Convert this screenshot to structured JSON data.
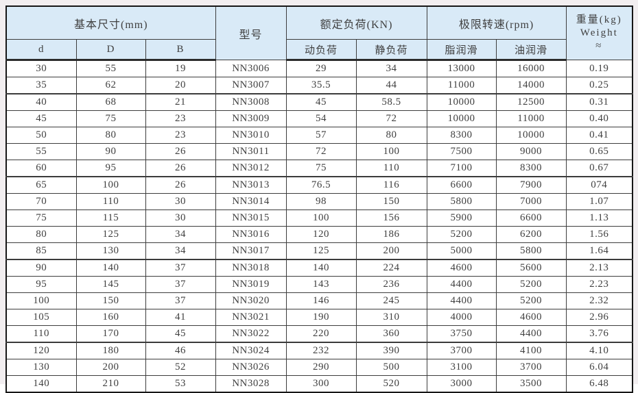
{
  "colors": {
    "page_bg": "#f2eef0",
    "header_bg": "#d9eaf7",
    "row_bg": "#ffffff",
    "border": "#3c3c3c",
    "text": "#3f3f3f"
  },
  "table": {
    "header": {
      "basic_dimensions": "基本尺寸(mm)",
      "model": "型号",
      "rated_load": "额定负荷(KN)",
      "limit_speed": "极限转速(rpm)",
      "weight_line1": "重量(kg)",
      "weight_line2": "Weight",
      "weight_line3": "≈",
      "sub": [
        "d",
        "D",
        "B",
        "动负荷",
        "静负荷",
        "脂润滑",
        "油润滑"
      ]
    },
    "rows": [
      [
        "30",
        "55",
        "19",
        "NN3006",
        "29",
        "34",
        "13000",
        "16000",
        "0.19"
      ],
      [
        "35",
        "62",
        "20",
        "NN3007",
        "35.5",
        "44",
        "11000",
        "14000",
        "0.25"
      ],
      [
        "40",
        "68",
        "21",
        "NN3008",
        "45",
        "58.5",
        "10000",
        "12500",
        "0.31"
      ],
      [
        "45",
        "75",
        "23",
        "NN3009",
        "54",
        "72",
        "10000",
        "11000",
        "0.40"
      ],
      [
        "50",
        "80",
        "23",
        "NN3010",
        "57",
        "80",
        "8300",
        "10000",
        "0.41"
      ],
      [
        "55",
        "90",
        "26",
        "NN3011",
        "72",
        "100",
        "7500",
        "9000",
        "0.65"
      ],
      [
        "60",
        "95",
        "26",
        "NN3012",
        "75",
        "110",
        "7100",
        "8300",
        "0.67"
      ],
      [
        "65",
        "100",
        "26",
        "NN3013",
        "76.5",
        "116",
        "6600",
        "7900",
        "074"
      ],
      [
        "70",
        "110",
        "30",
        "NN3014",
        "98",
        "150",
        "5800",
        "7000",
        "1.07"
      ],
      [
        "75",
        "115",
        "30",
        "NN3015",
        "100",
        "156",
        "5900",
        "6600",
        "1.13"
      ],
      [
        "80",
        "125",
        "34",
        "NN3016",
        "120",
        "186",
        "5200",
        "6200",
        "1.56"
      ],
      [
        "85",
        "130",
        "34",
        "NN3017",
        "125",
        "200",
        "5000",
        "5800",
        "1.64"
      ],
      [
        "90",
        "140",
        "37",
        "NN3018",
        "140",
        "224",
        "4600",
        "5600",
        "2.13"
      ],
      [
        "95",
        "145",
        "37",
        "NN3019",
        "143",
        "236",
        "4400",
        "5200",
        "2.23"
      ],
      [
        "100",
        "150",
        "37",
        "NN3020",
        "146",
        "245",
        "4400",
        "5200",
        "2.32"
      ],
      [
        "105",
        "160",
        "41",
        "NN3021",
        "190",
        "310",
        "4000",
        "4600",
        "2.96"
      ],
      [
        "110",
        "170",
        "45",
        "NN3022",
        "220",
        "360",
        "3750",
        "4400",
        "3.76"
      ],
      [
        "120",
        "180",
        "46",
        "NN3024",
        "232",
        "390",
        "3700",
        "4100",
        "4.10"
      ],
      [
        "130",
        "200",
        "52",
        "NN3026",
        "290",
        "500",
        "3100",
        "3700",
        "6.04"
      ],
      [
        "140",
        "210",
        "53",
        "NN3028",
        "300",
        "520",
        "3000",
        "3500",
        "6.48"
      ]
    ]
  }
}
